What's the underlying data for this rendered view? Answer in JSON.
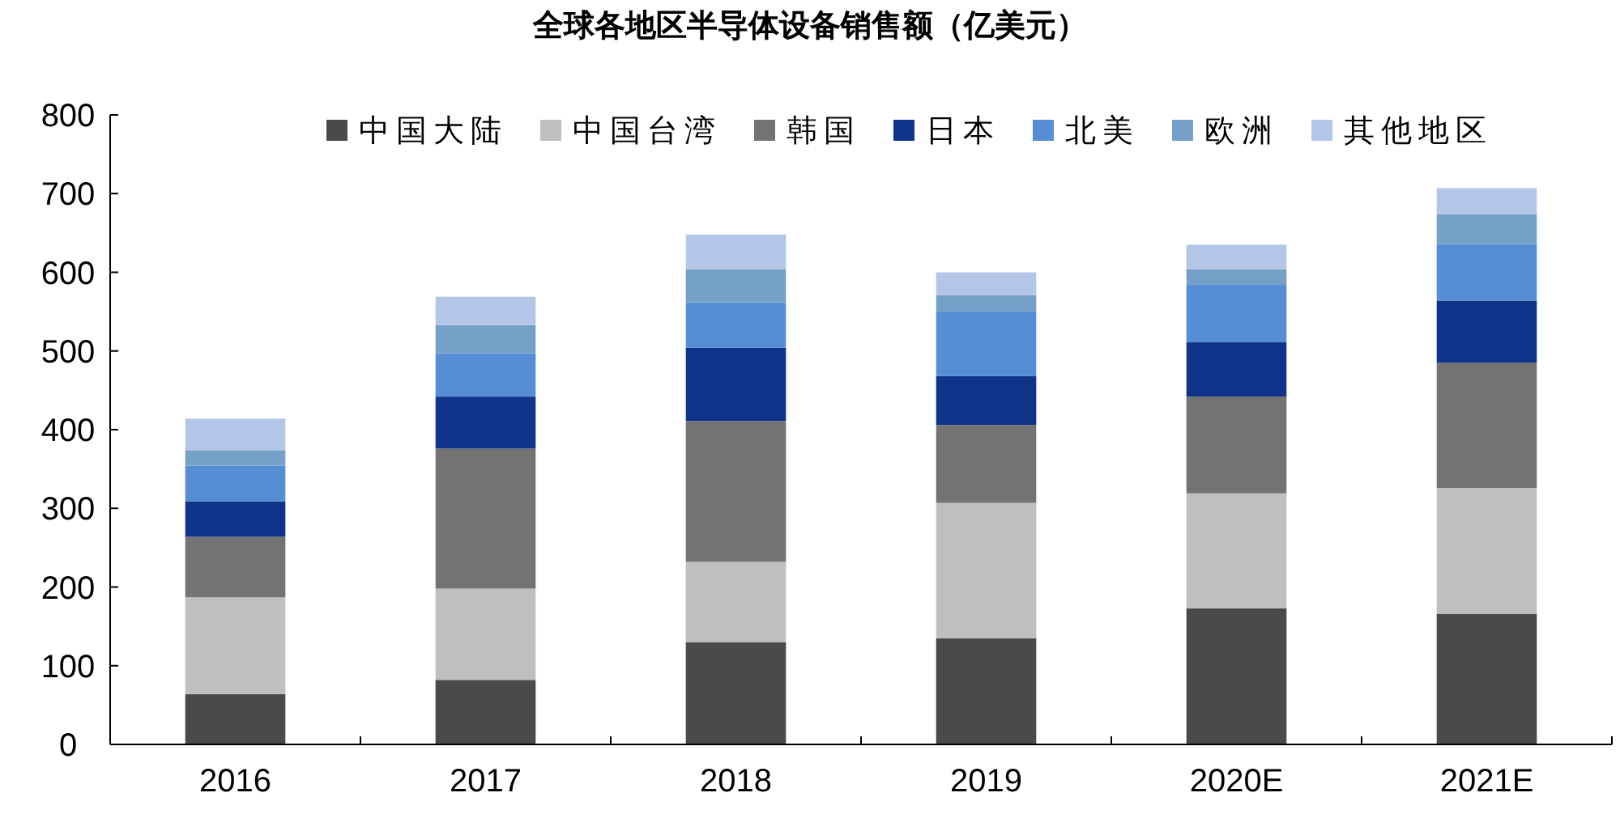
{
  "chart_data": {
    "type": "bar",
    "title": "全球各地区半导体设备销售额（亿美元）",
    "stacked": true,
    "categories": [
      "2016",
      "2017",
      "2018",
      "2019",
      "2020E",
      "2021E"
    ],
    "series": [
      {
        "name": "中国大陆",
        "color": "#4a4a4a",
        "values": [
          64,
          82,
          130,
          135,
          173,
          166
        ]
      },
      {
        "name": "中国台湾",
        "color": "#bfbfbf",
        "values": [
          123,
          116,
          102,
          172,
          146,
          160
        ]
      },
      {
        "name": "韩国",
        "color": "#737373",
        "values": [
          77,
          178,
          179,
          99,
          123,
          159
        ]
      },
      {
        "name": "日本",
        "color": "#10338a",
        "values": [
          45,
          66,
          93,
          62,
          69,
          79
        ]
      },
      {
        "name": "北美",
        "color": "#558ed5",
        "values": [
          45,
          55,
          58,
          82,
          73,
          72
        ]
      },
      {
        "name": "欧洲",
        "color": "#75a1c8",
        "values": [
          20,
          36,
          42,
          21,
          20,
          38
        ]
      },
      {
        "name": "其他地区",
        "color": "#b4c6e7",
        "values": [
          40,
          36,
          44,
          29,
          31,
          33
        ]
      }
    ],
    "ylim": [
      0,
      800
    ],
    "yticks": [
      0,
      100,
      200,
      300,
      400,
      500,
      600,
      700,
      800
    ],
    "grid": false,
    "legend": "top"
  }
}
